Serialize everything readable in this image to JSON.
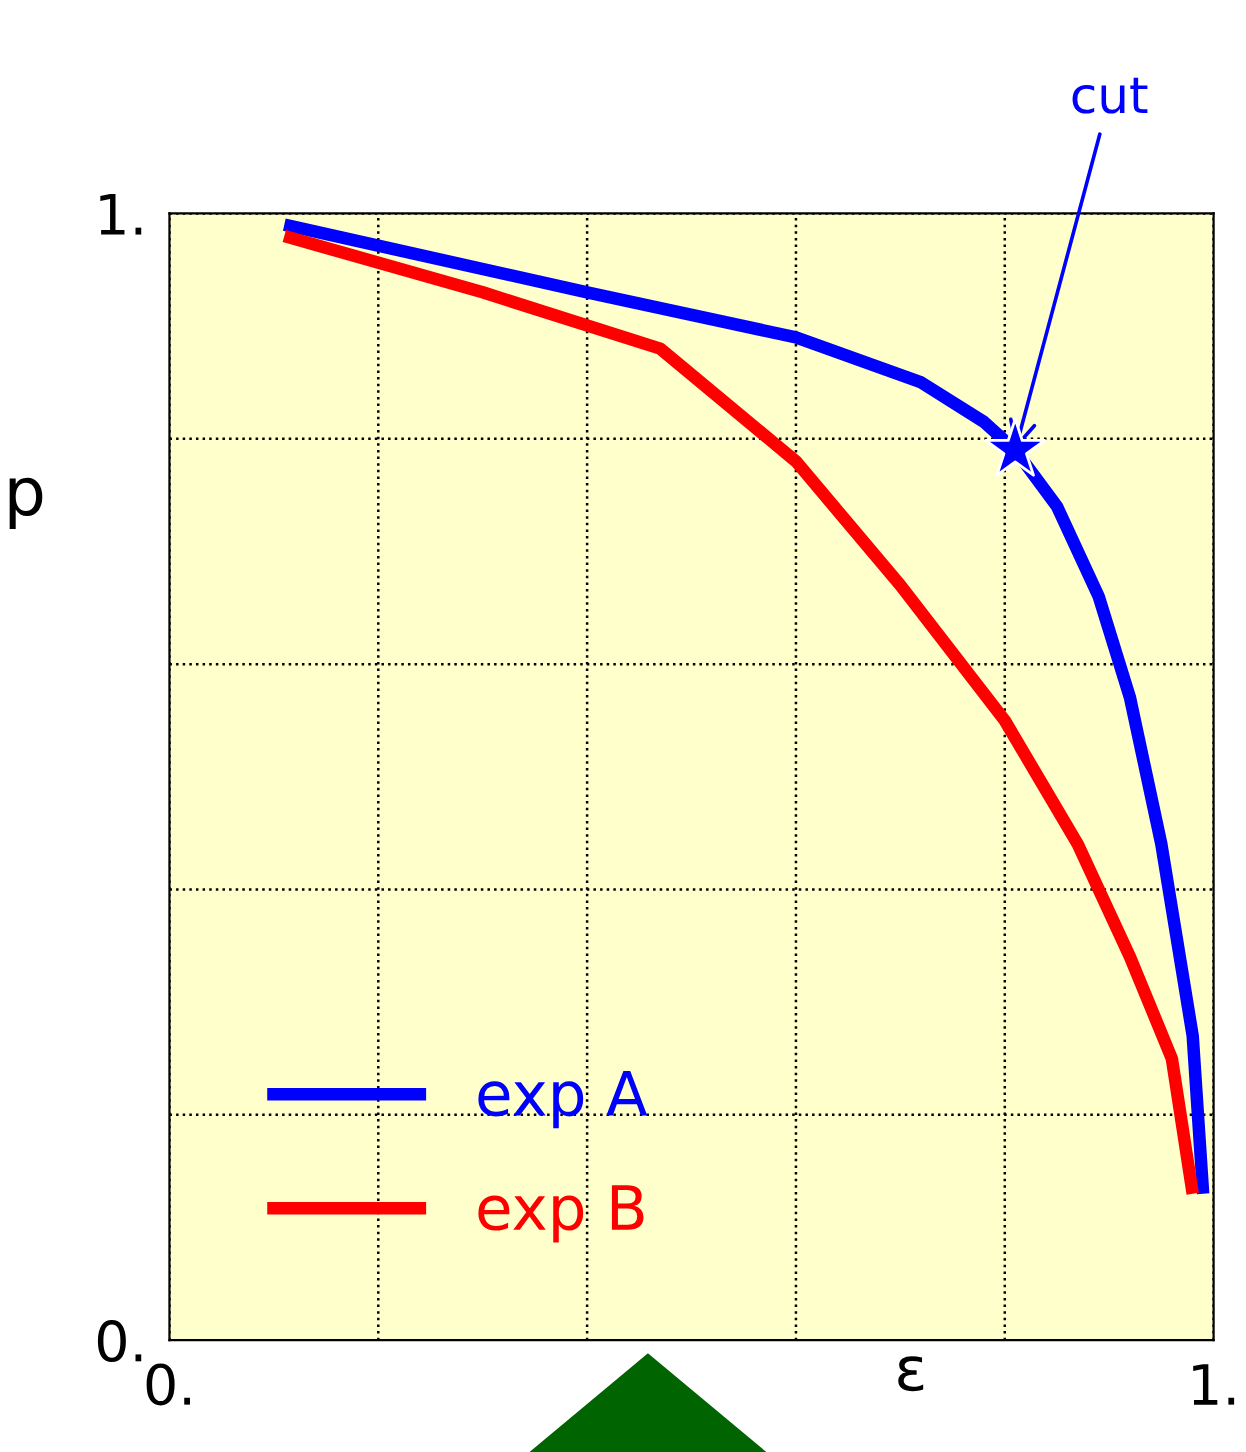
{
  "chart_data": {
    "type": "line",
    "xlabel": "ε",
    "ylabel": "p",
    "xlim": [
      0,
      1
    ],
    "ylim": [
      0,
      1
    ],
    "xticks": [
      {
        "value": 0,
        "label": "0."
      },
      {
        "value": 0.2,
        "label": null
      },
      {
        "value": 0.4,
        "label": null
      },
      {
        "value": 0.6,
        "label": null
      },
      {
        "value": 0.8,
        "label": null
      },
      {
        "value": 1,
        "label": "1."
      }
    ],
    "yticks": [
      {
        "value": 0,
        "label": "0."
      },
      {
        "value": 0.2,
        "label": null
      },
      {
        "value": 0.4,
        "label": null
      },
      {
        "value": 0.6,
        "label": null
      },
      {
        "value": 0.8,
        "label": null
      },
      {
        "value": 1,
        "label": "1."
      }
    ],
    "grid": true,
    "legend": "bottom left",
    "line_style": "solid",
    "series": [
      {
        "name": "exp A",
        "color": "#0000ff",
        "x": [
          0.11,
          0.4,
          0.6,
          0.72,
          0.78,
          0.81,
          0.85,
          0.89,
          0.92,
          0.95,
          0.98,
          0.99
        ],
        "values": [
          0.99,
          0.93,
          0.89,
          0.85,
          0.815,
          0.79,
          0.74,
          0.66,
          0.57,
          0.44,
          0.27,
          0.13
        ]
      },
      {
        "name": "exp B",
        "color": "#ff0000",
        "x": [
          0.11,
          0.3,
          0.47,
          0.6,
          0.7,
          0.8,
          0.87,
          0.92,
          0.96,
          0.98
        ],
        "values": [
          0.98,
          0.93,
          0.88,
          0.78,
          0.67,
          0.55,
          0.44,
          0.34,
          0.25,
          0.13
        ]
      },
      {
        "type": "scatter",
        "marker": "star",
        "color": "#0000ff",
        "x": [
          0.81
        ],
        "values": [
          0.79
        ]
      }
    ],
    "annotations": [
      {
        "text": "cut",
        "x": 0.81,
        "y": 0.79
      }
    ]
  }
}
